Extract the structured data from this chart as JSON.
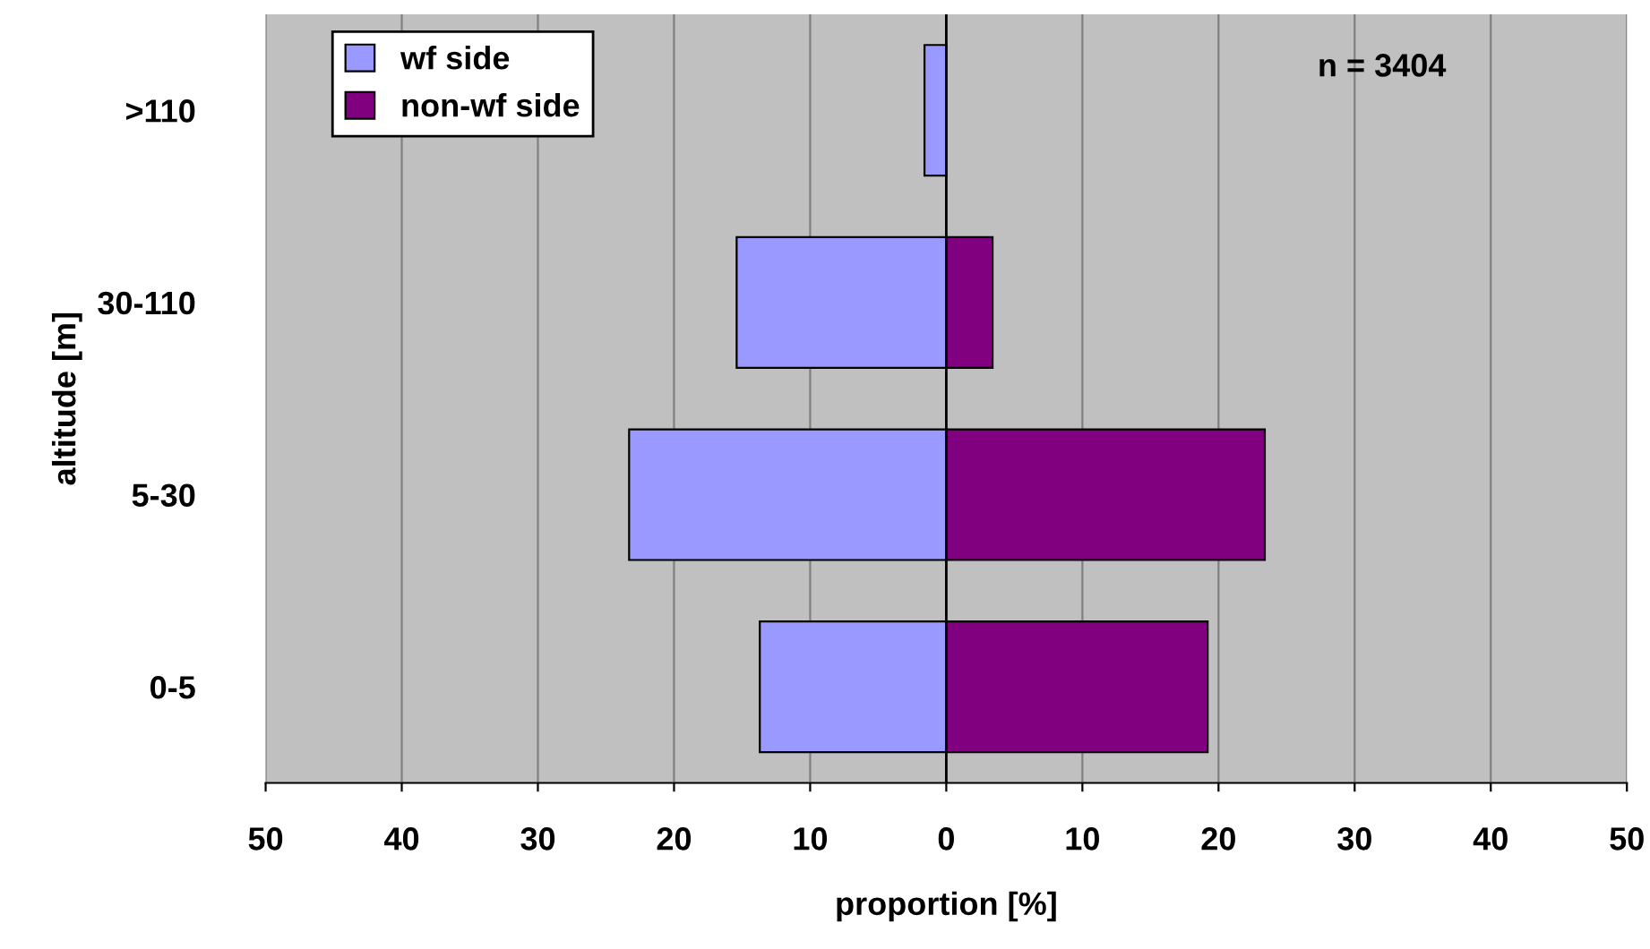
{
  "chart_data": {
    "type": "bar",
    "orientation": "horizontal",
    "stacked": true,
    "xlabel": "proportion [%]",
    "ylabel": "altitude [m]",
    "categories": [
      ">110",
      "30-110",
      "5-30",
      "0-5"
    ],
    "series": [
      {
        "name": "wf side",
        "color": "#9999ff",
        "values": [
          -1.6,
          -15.4,
          -23.3,
          -13.7
        ]
      },
      {
        "name": "non-wf side",
        "color": "#800080",
        "values": [
          null,
          3.4,
          23.4,
          19.2
        ]
      }
    ],
    "xlim": [
      -50,
      50
    ],
    "xticks": [
      {
        "value": -50,
        "label": "50"
      },
      {
        "value": -40,
        "label": "40"
      },
      {
        "value": -30,
        "label": "30"
      },
      {
        "value": -20,
        "label": "20"
      },
      {
        "value": -10,
        "label": "10"
      },
      0,
      10,
      20,
      30,
      40,
      50
    ],
    "ref_lines": [
      {
        "axis": "x",
        "value": 0,
        "color": "#000000"
      }
    ],
    "grid": "x",
    "legend": "top left",
    "annotations": [
      "n = 3404"
    ]
  }
}
